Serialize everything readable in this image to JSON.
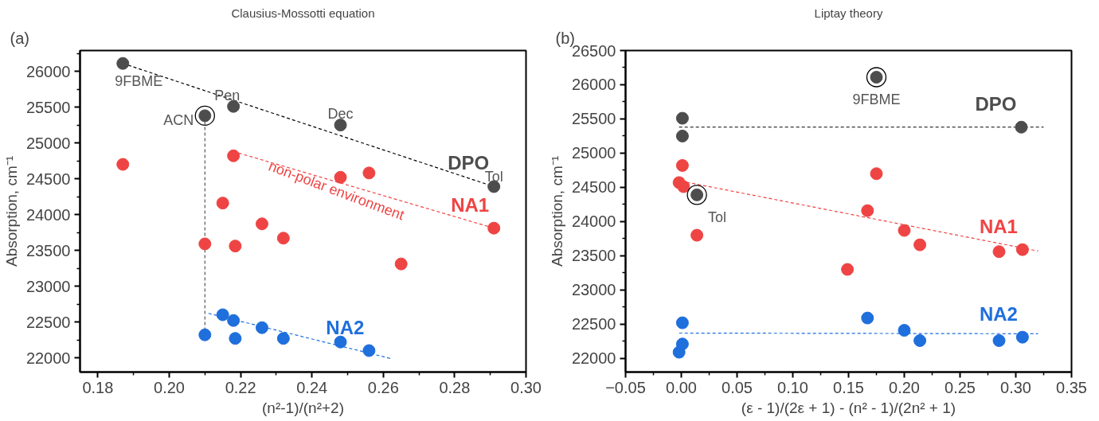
{
  "chart_data": [
    {
      "type": "scatter",
      "title": "Clausius-Mossotti equation",
      "xlabel": "(n²-1)/(n²+2)",
      "ylabel": "Absorption, cm⁻¹",
      "xlim": [
        0.175,
        0.3
      ],
      "ylim": [
        21800,
        26290
      ],
      "xticks": [
        0.18,
        {
          "value": 0.19,
          "label": null
        },
        {
          "value": 0.2,
          "label": "0.20"
        },
        {
          "value": 0.21,
          "label": null
        },
        0.22,
        {
          "value": 0.23,
          "label": null
        },
        0.24,
        {
          "value": 0.25,
          "label": null
        },
        0.26,
        {
          "value": 0.27,
          "label": null
        },
        0.28,
        {
          "value": 0.29,
          "label": null
        },
        {
          "value": 0.3,
          "label": "0.30"
        }
      ],
      "yticks": [
        22000,
        {
          "value": 22250,
          "label": null
        },
        22500,
        {
          "value": 22750,
          "label": null
        },
        23000,
        {
          "value": 23250,
          "label": null
        },
        23500,
        {
          "value": 23750,
          "label": null
        },
        24000,
        {
          "value": 24250,
          "label": null
        },
        24500,
        {
          "value": 24750,
          "label": null
        },
        25000,
        {
          "value": 25250,
          "label": null
        },
        25500,
        {
          "value": 25750,
          "label": null
        },
        26000,
        {
          "value": 26250,
          "label": null
        }
      ],
      "grid": false,
      "series": [
        {
          "type": "line",
          "color": "#000000",
          "line_style": "dashed",
          "x": [
            0.187,
            0.291
          ],
          "values": [
            26110,
            24390
          ]
        },
        {
          "type": "line",
          "color": "#ef4444",
          "line_style": "dashed",
          "x": [
            0.218,
            0.291
          ],
          "values": [
            24880,
            23810
          ]
        },
        {
          "type": "line",
          "color": "#1f6fdc",
          "line_style": "dashed",
          "x": [
            0.211,
            0.262
          ],
          "values": [
            22620,
            21990
          ]
        },
        {
          "type": "line",
          "color": "#555555",
          "line_style": "dashed",
          "x": [
            0.21,
            0.21
          ],
          "values": [
            25380,
            22320
          ]
        },
        {
          "marker": "circle",
          "name": "DPO",
          "color": "#4d4d4d",
          "x": [
            0.187,
            0.21,
            0.218,
            0.248,
            0.291
          ],
          "values": [
            26110,
            25380,
            25510,
            25250,
            24390
          ]
        },
        {
          "marker": "circle",
          "name": "NA1",
          "color": "#ef4444",
          "x": [
            0.187,
            0.218,
            0.215,
            0.226,
            0.232,
            0.21,
            0.2185,
            0.248,
            0.256,
            0.265,
            0.291
          ],
          "values": [
            24700,
            24820,
            24160,
            23870,
            23670,
            23590,
            23560,
            24520,
            24580,
            23310,
            23810
          ]
        },
        {
          "marker": "circle",
          "name": "NA2",
          "color": "#1f6fdc",
          "x": [
            0.21,
            0.215,
            0.218,
            0.2185,
            0.226,
            0.232,
            0.248,
            0.256
          ],
          "values": [
            22320,
            22600,
            22520,
            22270,
            22420,
            22270,
            22220,
            22100
          ]
        },
        {
          "marker": "circle_open",
          "color": "#000000",
          "x": [
            0.21
          ],
          "values": [
            25380
          ]
        }
      ],
      "annotations": [
        "(a)",
        {
          "text": "9FBME",
          "x": 0.187,
          "y": 26110
        },
        {
          "text": "Pen",
          "x": 0.218,
          "y": 25510
        },
        {
          "text": "ACN",
          "x": 0.21,
          "y": 25380
        },
        {
          "text": "Dec",
          "x": 0.248,
          "y": 25250
        },
        {
          "text": "Tol",
          "x": 0.291,
          "y": 24390
        },
        "non-polar environment"
      ]
    },
    {
      "type": "scatter",
      "title": "Liptay theory",
      "xlabel": "(ε - 1)/(2ε + 1) - (n² - 1)/(2n² + 1)",
      "ylabel": "Absorption, cm⁻¹",
      "xlim": [
        -0.05,
        0.35
      ],
      "ylim": [
        21800,
        26500
      ],
      "xticks": [
        -0.05,
        {
          "value": -0.025,
          "label": null
        },
        {
          "value": 0.0,
          "label": "0.00"
        },
        {
          "value": 0.025,
          "label": null
        },
        0.05,
        {
          "value": 0.075,
          "label": null
        },
        {
          "value": 0.1,
          "label": "0.10"
        },
        {
          "value": 0.125,
          "label": null
        },
        0.15,
        {
          "value": 0.175,
          "label": null
        },
        {
          "value": 0.2,
          "label": "0.20"
        },
        {
          "value": 0.225,
          "label": null
        },
        0.25,
        {
          "value": 0.275,
          "label": null
        },
        {
          "value": 0.3,
          "label": "0.30"
        },
        {
          "value": 0.325,
          "label": null
        },
        0.35
      ],
      "yticks": [
        22000,
        {
          "value": 22250,
          "label": null
        },
        22500,
        {
          "value": 22750,
          "label": null
        },
        23000,
        {
          "value": 23250,
          "label": null
        },
        23500,
        {
          "value": 23750,
          "label": null
        },
        24000,
        {
          "value": 24250,
          "label": null
        },
        24500,
        {
          "value": 24750,
          "label": null
        },
        25000,
        {
          "value": 25250,
          "label": null
        },
        25500,
        {
          "value": 25750,
          "label": null
        },
        26000,
        {
          "value": 26250,
          "label": null
        },
        26500
      ],
      "grid": false,
      "series": [
        {
          "type": "line",
          "color": "#000000",
          "line_style": "dashed",
          "x": [
            -0.002,
            0.325
          ],
          "values": [
            25380,
            25380
          ]
        },
        {
          "type": "line",
          "color": "#ef4444",
          "line_style": "dashed",
          "x": [
            0.0,
            0.32
          ],
          "values": [
            24590,
            23570
          ]
        },
        {
          "type": "line",
          "color": "#1f6fdc",
          "line_style": "dashed",
          "x": [
            -0.002,
            0.32
          ],
          "values": [
            22370,
            22360
          ]
        },
        {
          "marker": "circle",
          "name": "DPO",
          "color": "#4d4d4d",
          "x": [
            0.001,
            0.001,
            0.175,
            0.305,
            0.014
          ],
          "values": [
            25510,
            25250,
            26110,
            25380,
            24390
          ]
        },
        {
          "marker": "circle",
          "name": "NA1",
          "color": "#ef4444",
          "x": [
            0.001,
            -0.002,
            0.002,
            0.175,
            0.167,
            0.014,
            0.2,
            0.214,
            0.149,
            0.285,
            0.306
          ],
          "values": [
            24820,
            24570,
            24510,
            24700,
            24160,
            23800,
            23870,
            23660,
            23300,
            23560,
            23590
          ]
        },
        {
          "marker": "circle",
          "name": "NA2",
          "color": "#1f6fdc",
          "x": [
            0.001,
            0.001,
            -0.002,
            0.167,
            0.2,
            0.214,
            0.285,
            0.306
          ],
          "values": [
            22520,
            22210,
            22090,
            22590,
            22410,
            22260,
            22260,
            22310
          ]
        },
        {
          "marker": "circle_open",
          "color": "#000000",
          "x": [
            0.175,
            0.014
          ],
          "values": [
            26110,
            24390
          ]
        }
      ],
      "annotations": [
        "(b)",
        {
          "text": "9FBME",
          "x": 0.175,
          "y": 26110
        },
        {
          "text": "Tol",
          "x": 0.014,
          "y": 24390
        }
      ]
    }
  ]
}
